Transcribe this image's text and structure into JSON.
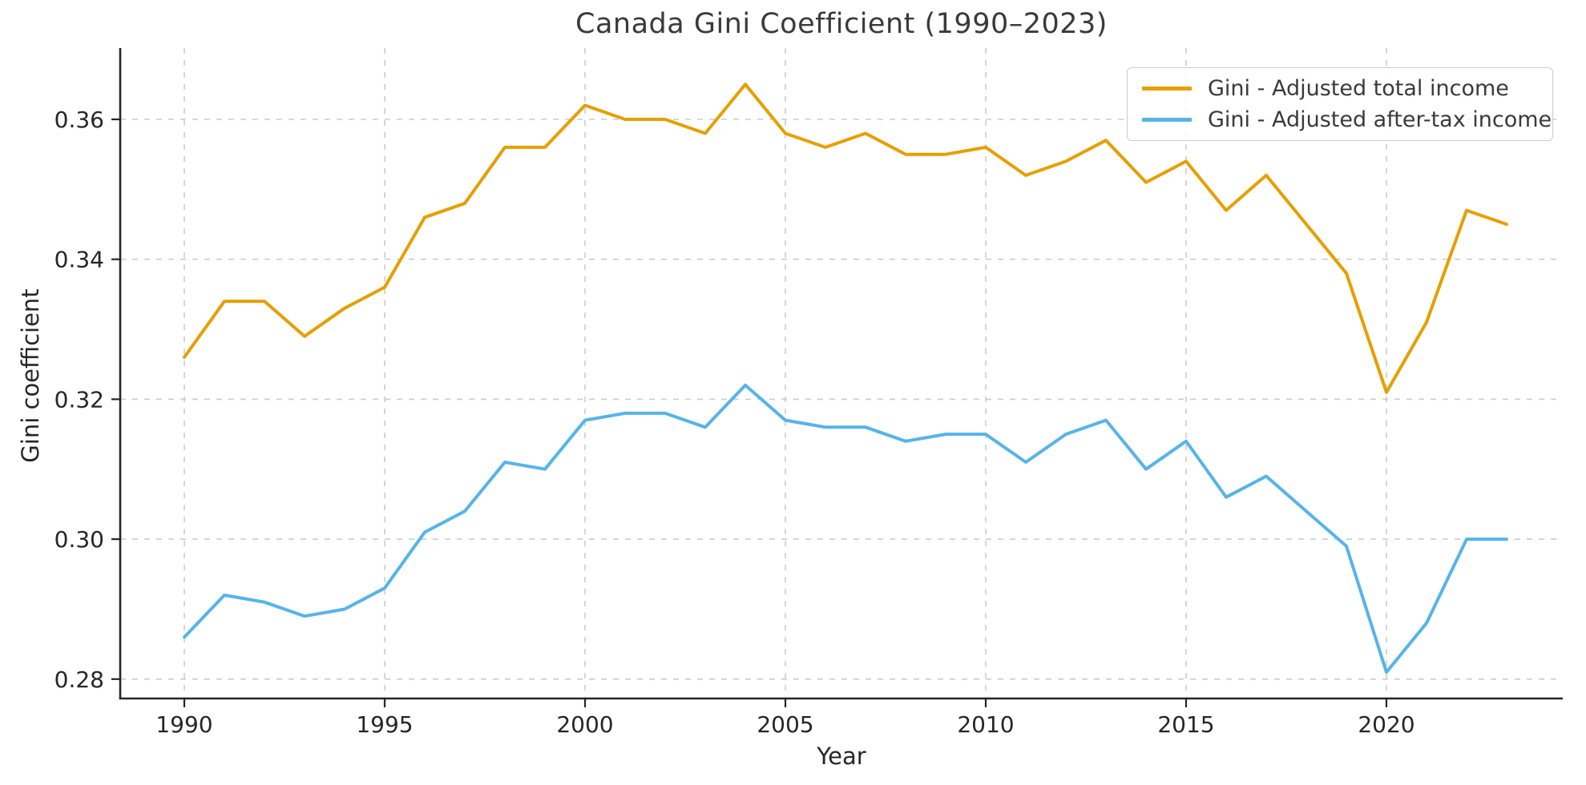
{
  "title": "Canada Gini Coefficient (1990–2023)",
  "xlabel": "Year",
  "ylabel": "Gini coefficient",
  "legend": {
    "position": "upper right",
    "items": [
      {
        "label": "Gini - Adjusted total income",
        "color": "#E69F00"
      },
      {
        "label": "Gini - Adjusted after-tax income",
        "color": "#56B4E9"
      }
    ]
  },
  "colors": {
    "total_income_line": "#E69F00",
    "after_tax_line": "#56B4E9",
    "grid": "#cccccc",
    "spine": "#262626",
    "tick_label": "#262626",
    "title_text": "#3a3a3a",
    "background": "#ffffff",
    "legend_border": "#cccccc"
  },
  "chart_data": {
    "type": "line",
    "title": "Canada Gini Coefficient (1990–2023)",
    "xlabel": "Year",
    "ylabel": "Gini coefficient",
    "grid": true,
    "grid_style": "dashed",
    "legend_position": "upper right",
    "xlim": [
      1988.4,
      2024.4
    ],
    "ylim": [
      0.2772,
      0.3702
    ],
    "xticks": [
      1990,
      1995,
      2000,
      2005,
      2010,
      2015,
      2020
    ],
    "xtick_labels": [
      "1990",
      "1995",
      "2000",
      "2005",
      "2010",
      "2015",
      "2020"
    ],
    "yticks": [
      0.28,
      0.3,
      0.32,
      0.34,
      0.36
    ],
    "ytick_labels": [
      "0.28",
      "0.30",
      "0.32",
      "0.34",
      "0.36"
    ],
    "x": [
      1990,
      1991,
      1992,
      1993,
      1994,
      1995,
      1996,
      1997,
      1998,
      1999,
      2000,
      2001,
      2002,
      2003,
      2004,
      2005,
      2006,
      2007,
      2008,
      2009,
      2010,
      2011,
      2012,
      2013,
      2014,
      2015,
      2016,
      2017,
      2018,
      2019,
      2020,
      2021,
      2022,
      2023
    ],
    "series": [
      {
        "name": "Gini - Adjusted total income",
        "color": "#E69F00",
        "values": [
          0.326,
          0.334,
          0.334,
          0.329,
          0.333,
          0.336,
          0.346,
          0.348,
          0.356,
          0.356,
          0.362,
          0.36,
          0.36,
          0.358,
          0.365,
          0.358,
          0.356,
          0.358,
          0.355,
          0.355,
          0.356,
          0.352,
          0.354,
          0.357,
          0.351,
          0.354,
          0.347,
          0.352,
          0.345,
          0.338,
          0.321,
          0.331,
          0.347,
          0.345
        ]
      },
      {
        "name": "Gini - Adjusted after-tax income",
        "color": "#56B4E9",
        "values": [
          0.286,
          0.292,
          0.291,
          0.289,
          0.29,
          0.293,
          0.301,
          0.304,
          0.311,
          0.31,
          0.317,
          0.318,
          0.318,
          0.316,
          0.322,
          0.317,
          0.316,
          0.316,
          0.314,
          0.315,
          0.315,
          0.311,
          0.315,
          0.317,
          0.31,
          0.314,
          0.306,
          0.309,
          0.304,
          0.299,
          0.281,
          0.288,
          0.3,
          0.3
        ]
      }
    ]
  }
}
